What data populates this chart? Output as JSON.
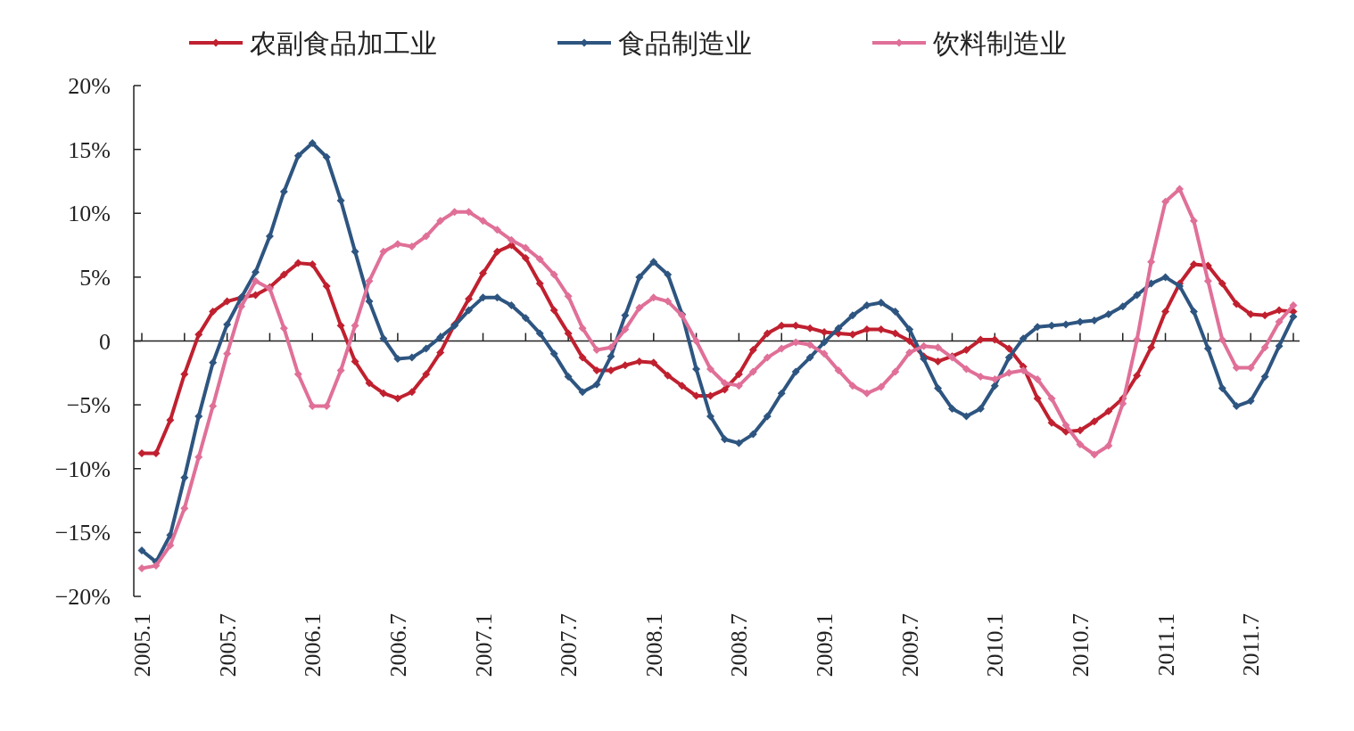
{
  "chart_data": {
    "type": "line",
    "legend": "top",
    "marker": "diamond",
    "line_style": "solid",
    "ylim": [
      -20,
      20
    ],
    "yticks": [
      {
        "value": 20,
        "label": "20%"
      },
      {
        "value": 15,
        "label": "15%"
      },
      {
        "value": 10,
        "label": "10%"
      },
      {
        "value": 5,
        "label": "5%"
      },
      {
        "value": 0,
        "label": "0"
      },
      {
        "value": -5,
        "label": "−5%"
      },
      {
        "value": -10,
        "label": "−10%"
      },
      {
        "value": -15,
        "label": "−15%"
      },
      {
        "value": -20,
        "label": "−20%"
      }
    ],
    "categories": [
      "2005.1",
      null,
      null,
      null,
      null,
      null,
      "2005.7",
      null,
      null,
      null,
      null,
      null,
      "2006.1",
      null,
      null,
      null,
      null,
      null,
      "2006.7",
      null,
      null,
      null,
      null,
      null,
      "2007.1",
      null,
      null,
      null,
      null,
      null,
      "2007.7",
      null,
      null,
      null,
      null,
      null,
      "2008.1",
      null,
      null,
      null,
      null,
      null,
      "2008.7",
      null,
      null,
      null,
      null,
      null,
      "2009.1",
      null,
      null,
      null,
      null,
      null,
      "2009.7",
      null,
      null,
      null,
      null,
      null,
      "2010.1",
      null,
      null,
      null,
      null,
      null,
      "2010.7",
      null,
      null,
      null,
      null,
      null,
      "2011.1",
      null,
      null,
      null,
      null,
      null,
      "2011.7",
      null,
      null,
      null
    ],
    "series": [
      {
        "name": "农副食品加工业",
        "color": "#c0202f",
        "values": [
          -8.8,
          -8.8,
          -6.2,
          -2.6,
          0.5,
          2.3,
          3.1,
          3.4,
          3.6,
          4.2,
          5.2,
          6.1,
          6.0,
          4.3,
          1.2,
          -1.6,
          -3.3,
          -4.1,
          -4.5,
          -4.0,
          -2.6,
          -0.9,
          1.3,
          3.3,
          5.3,
          7.0,
          7.5,
          6.5,
          4.5,
          2.4,
          0.6,
          -1.3,
          -2.3,
          -2.3,
          -1.9,
          -1.6,
          -1.7,
          -2.7,
          -3.5,
          -4.3,
          -4.3,
          -3.8,
          -2.6,
          -0.7,
          0.6,
          1.2,
          1.2,
          1.0,
          0.7,
          0.6,
          0.5,
          0.9,
          0.9,
          0.6,
          0.0,
          -1.2,
          -1.6,
          -1.2,
          -0.7,
          0.1,
          0.1,
          -0.6,
          -2.0,
          -4.5,
          -6.4,
          -7.1,
          -7.0,
          -6.3,
          -5.5,
          -4.5,
          -2.7,
          -0.5,
          2.3,
          4.5,
          6.0,
          5.9,
          4.5,
          2.9,
          2.1,
          2.0,
          2.4,
          2.3
        ]
      },
      {
        "name": "食品制造业",
        "color": "#2e5580",
        "values": [
          -16.4,
          -17.3,
          -15.2,
          -10.7,
          -5.9,
          -1.7,
          1.3,
          3.4,
          5.4,
          8.2,
          11.7,
          14.5,
          15.5,
          14.4,
          11.0,
          7.0,
          3.1,
          0.2,
          -1.4,
          -1.3,
          -0.6,
          0.3,
          1.2,
          2.4,
          3.4,
          3.4,
          2.8,
          1.8,
          0.6,
          -1.0,
          -2.8,
          -4.0,
          -3.4,
          -1.2,
          2.0,
          5.0,
          6.2,
          5.2,
          2.1,
          -2.2,
          -5.9,
          -7.7,
          -8.0,
          -7.3,
          -5.9,
          -4.1,
          -2.4,
          -1.3,
          -0.1,
          1.0,
          2.0,
          2.8,
          3.0,
          2.3,
          0.9,
          -1.4,
          -3.7,
          -5.3,
          -5.9,
          -5.3,
          -3.5,
          -1.3,
          0.2,
          1.1,
          1.2,
          1.3,
          1.5,
          1.6,
          2.1,
          2.7,
          3.6,
          4.5,
          5.0,
          4.3,
          2.3,
          -0.6,
          -3.7,
          -5.1,
          -4.7,
          -2.8,
          -0.4,
          1.9
        ]
      },
      {
        "name": "饮料制造业",
        "color": "#e07098",
        "values": [
          -17.8,
          -17.6,
          -16.0,
          -13.1,
          -9.1,
          -5.1,
          -1.0,
          2.7,
          4.7,
          4.1,
          1.0,
          -2.6,
          -5.1,
          -5.1,
          -2.3,
          1.2,
          4.7,
          7.0,
          7.6,
          7.4,
          8.2,
          9.4,
          10.1,
          10.1,
          9.4,
          8.7,
          7.9,
          7.3,
          6.4,
          5.2,
          3.5,
          1.0,
          -0.7,
          -0.5,
          0.9,
          2.6,
          3.4,
          3.1,
          2.0,
          0.0,
          -2.2,
          -3.3,
          -3.5,
          -2.4,
          -1.3,
          -0.6,
          -0.1,
          -0.3,
          -1.0,
          -2.3,
          -3.5,
          -4.1,
          -3.6,
          -2.4,
          -0.9,
          -0.4,
          -0.5,
          -1.3,
          -2.2,
          -2.8,
          -3.0,
          -2.5,
          -2.3,
          -3.0,
          -4.5,
          -6.6,
          -8.1,
          -8.9,
          -8.2,
          -4.9,
          0.1,
          6.2,
          10.9,
          11.9,
          9.4,
          4.7,
          0.1,
          -2.1,
          -2.1,
          -0.5,
          1.5,
          2.8
        ]
      }
    ]
  }
}
